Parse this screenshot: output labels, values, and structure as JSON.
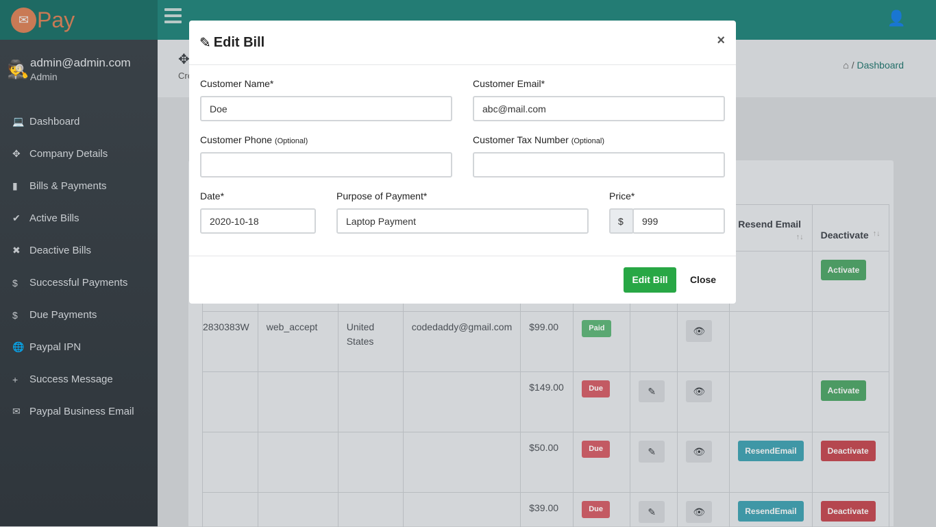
{
  "brand": {
    "name": "Pay"
  },
  "user": {
    "email": "admin@admin.com",
    "role": "Admin"
  },
  "sidebar": {
    "items": [
      {
        "label": "Dashboard",
        "icon": "💻"
      },
      {
        "label": "Company Details",
        "icon": "✥"
      },
      {
        "label": "Bills & Payments",
        "icon": "▮"
      },
      {
        "label": "Active Bills",
        "icon": "✔"
      },
      {
        "label": "Deactive Bills",
        "icon": "✖"
      },
      {
        "label": "Successful Payments",
        "icon": "$"
      },
      {
        "label": "Due Payments",
        "icon": "$"
      },
      {
        "label": "Paypal IPN",
        "icon": "🌐"
      },
      {
        "label": "Success Message",
        "icon": "+"
      },
      {
        "label": "Paypal Business Email",
        "icon": "✉"
      }
    ]
  },
  "header": {
    "partial_title": "Cre",
    "breadcrumb": "Dashboard"
  },
  "table": {
    "headers": [
      "",
      "",
      "",
      "",
      "",
      "",
      "",
      "",
      "Resend Email",
      "Deactivate"
    ],
    "rows": [
      {
        "c0": "",
        "c1": "",
        "c2": "",
        "c3": "",
        "price": "",
        "status": "",
        "edit": false,
        "view": false,
        "resend": "",
        "deact": "Activate"
      },
      {
        "c0": "2830383W",
        "c1": "web_accept",
        "c2": "United States",
        "c3": "codedaddy@gmail.com",
        "price": "$99.00",
        "status": "Paid",
        "edit": false,
        "view": true,
        "resend": "",
        "deact": ""
      },
      {
        "c0": "",
        "c1": "",
        "c2": "",
        "c3": "",
        "price": "$149.00",
        "status": "Due",
        "edit": true,
        "view": true,
        "resend": "",
        "deact": "Activate"
      },
      {
        "c0": "",
        "c1": "",
        "c2": "",
        "c3": "",
        "price": "$50.00",
        "status": "Due",
        "edit": true,
        "view": true,
        "resend": "ResendEmail",
        "deact": "Deactivate"
      },
      {
        "c0": "",
        "c1": "",
        "c2": "",
        "c3": "",
        "price": "$39.00",
        "status": "Due",
        "edit": true,
        "view": true,
        "resend": "ResendEmail",
        "deact": "Deactivate"
      }
    ]
  },
  "modal": {
    "title": "Edit Bill",
    "close_x": "×",
    "customer_name": {
      "label": "Customer Name*",
      "value": "Doe"
    },
    "customer_email": {
      "label": "Customer Email*",
      "value": "abc@mail.com"
    },
    "customer_phone": {
      "label": "Customer Phone",
      "optional": "(Optional)",
      "value": ""
    },
    "customer_tax": {
      "label": "Customer Tax Number",
      "optional": "(Optional)",
      "value": ""
    },
    "date": {
      "label": "Date*",
      "value": "2020-10-18"
    },
    "purpose": {
      "label": "Purpose of Payment*",
      "value": "Laptop Payment"
    },
    "price": {
      "label": "Price*",
      "prefix": "$",
      "value": "999"
    },
    "submit": "Edit Bill",
    "close": "Close"
  }
}
